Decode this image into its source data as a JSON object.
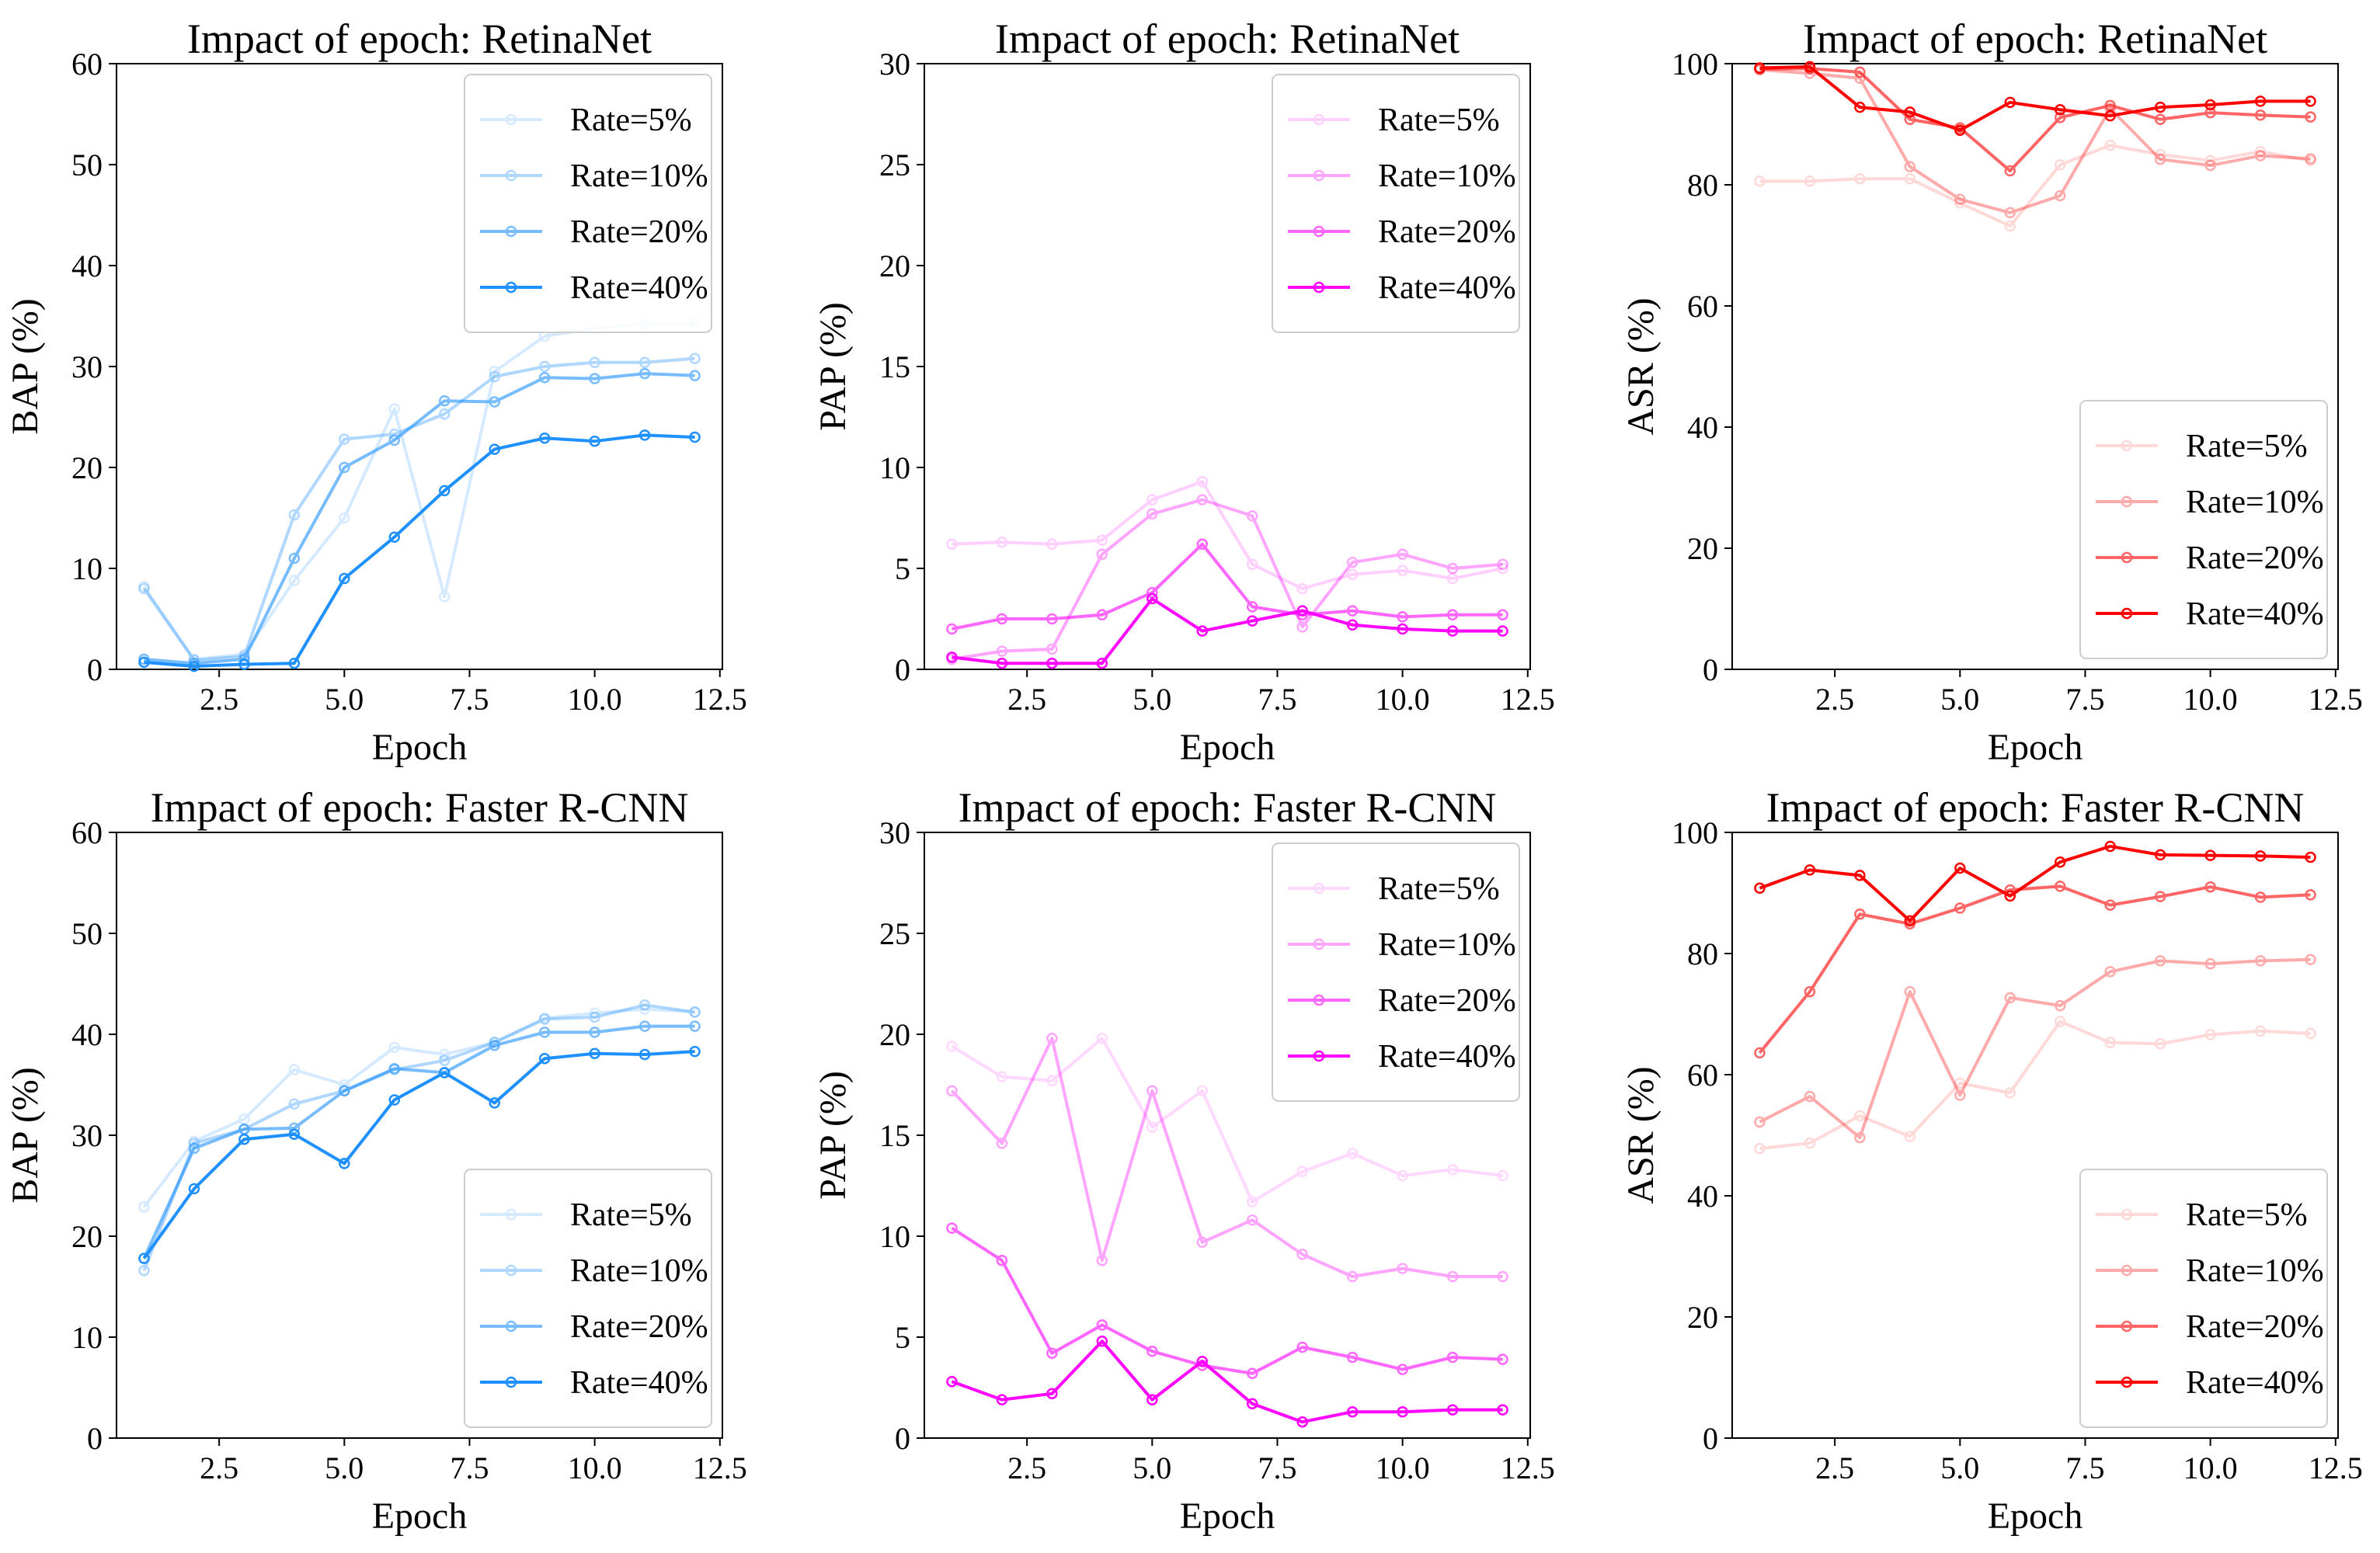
{
  "figure": {
    "layout": "2x3 grid of line charts"
  },
  "chart_data": [
    {
      "type": "line",
      "title": "Impact of epoch: RetinaNet",
      "xlabel": "Epoch",
      "ylabel": "BAP (%)",
      "xlim": [
        0.45,
        12.55
      ],
      "ylim": [
        0,
        60
      ],
      "xticks": [
        2.5,
        5.0,
        7.5,
        10.0,
        12.5
      ],
      "xtick_labels": [
        "2.5",
        "5.0",
        "7.5",
        "10.0",
        "12.5"
      ],
      "yticks": [
        0,
        10,
        20,
        30,
        40,
        50,
        60
      ],
      "ytick_labels": [
        "0",
        "10",
        "20",
        "30",
        "40",
        "50",
        "60"
      ],
      "legend_position": "top-right",
      "x": [
        1,
        2,
        3,
        4,
        5,
        6,
        7,
        8,
        9,
        10,
        11,
        12
      ],
      "series": [
        {
          "name": "Rate=5%",
          "color": "#1E90FF",
          "opacity": 0.18,
          "values": [
            8.2,
            1.0,
            1.5,
            8.8,
            15.0,
            25.8,
            7.2,
            29.5,
            33.0,
            33.8,
            34.2,
            34.3
          ]
        },
        {
          "name": "Rate=10%",
          "color": "#1E90FF",
          "opacity": 0.35,
          "values": [
            8.0,
            0.9,
            1.3,
            15.3,
            22.8,
            23.3,
            25.3,
            29.0,
            30.0,
            30.4,
            30.4,
            30.8
          ]
        },
        {
          "name": "Rate=20%",
          "color": "#1E90FF",
          "opacity": 0.6,
          "values": [
            1.0,
            0.6,
            1.0,
            11.0,
            20.0,
            22.7,
            26.6,
            26.5,
            28.9,
            28.8,
            29.3,
            29.1
          ]
        },
        {
          "name": "Rate=40%",
          "color": "#1E90FF",
          "opacity": 1.0,
          "values": [
            0.7,
            0.3,
            0.5,
            0.6,
            9.0,
            13.1,
            17.7,
            21.8,
            22.9,
            22.6,
            23.2,
            23.0
          ]
        }
      ]
    },
    {
      "type": "line",
      "title": "Impact of epoch: RetinaNet",
      "xlabel": "Epoch",
      "ylabel": "PAP (%)",
      "xlim": [
        0.45,
        12.55
      ],
      "ylim": [
        0,
        30
      ],
      "xticks": [
        2.5,
        5.0,
        7.5,
        10.0,
        12.5
      ],
      "xtick_labels": [
        "2.5",
        "5.0",
        "7.5",
        "10.0",
        "12.5"
      ],
      "yticks": [
        0,
        5,
        10,
        15,
        20,
        25,
        30
      ],
      "ytick_labels": [
        "0",
        "5",
        "10",
        "15",
        "20",
        "25",
        "30"
      ],
      "legend_position": "top-right",
      "x": [
        1,
        2,
        3,
        4,
        5,
        6,
        7,
        8,
        9,
        10,
        11,
        12
      ],
      "series": [
        {
          "name": "Rate=5%",
          "color": "#FF00FF",
          "opacity": 0.18,
          "values": [
            6.2,
            6.3,
            6.2,
            6.4,
            8.4,
            9.3,
            5.2,
            4.0,
            4.7,
            4.9,
            4.5,
            5.0
          ]
        },
        {
          "name": "Rate=10%",
          "color": "#FF00FF",
          "opacity": 0.35,
          "values": [
            0.5,
            0.9,
            1.0,
            5.7,
            7.7,
            8.4,
            7.6,
            2.1,
            5.3,
            5.7,
            5.0,
            5.2
          ]
        },
        {
          "name": "Rate=20%",
          "color": "#FF00FF",
          "opacity": 0.6,
          "values": [
            2.0,
            2.5,
            2.5,
            2.7,
            3.8,
            6.2,
            3.1,
            2.7,
            2.9,
            2.6,
            2.7,
            2.7
          ]
        },
        {
          "name": "Rate=40%",
          "color": "#FF00FF",
          "opacity": 1.0,
          "values": [
            0.6,
            0.3,
            0.3,
            0.3,
            3.5,
            1.9,
            2.4,
            2.9,
            2.2,
            2.0,
            1.9,
            1.9
          ]
        }
      ]
    },
    {
      "type": "line",
      "title": "Impact of epoch: RetinaNet",
      "xlabel": "Epoch",
      "ylabel": "ASR (%)",
      "xlim": [
        0.45,
        12.55
      ],
      "ylim": [
        0,
        100
      ],
      "xticks": [
        2.5,
        5.0,
        7.5,
        10.0,
        12.5
      ],
      "xtick_labels": [
        "2.5",
        "5.0",
        "7.5",
        "10.0",
        "12.5"
      ],
      "yticks": [
        0,
        20,
        40,
        60,
        80,
        100
      ],
      "ytick_labels": [
        "0",
        "20",
        "40",
        "60",
        "80",
        "100"
      ],
      "legend_position": "bottom-right",
      "x": [
        1,
        2,
        3,
        4,
        5,
        6,
        7,
        8,
        9,
        10,
        11,
        12
      ],
      "series": [
        {
          "name": "Rate=5%",
          "color": "#FF0000",
          "opacity": 0.15,
          "values": [
            80.6,
            80.6,
            81.0,
            81.0,
            77.0,
            73.2,
            83.3,
            86.5,
            85.0,
            84.0,
            85.5,
            84.0
          ]
        },
        {
          "name": "Rate=10%",
          "color": "#FF0000",
          "opacity": 0.33,
          "values": [
            99.0,
            98.4,
            97.6,
            83.0,
            77.6,
            75.4,
            78.2,
            92.6,
            84.2,
            83.2,
            84.8,
            84.3
          ]
        },
        {
          "name": "Rate=20%",
          "color": "#FF0000",
          "opacity": 0.6,
          "values": [
            99.1,
            99.2,
            98.6,
            90.8,
            89.4,
            82.3,
            91.1,
            93.1,
            90.8,
            91.9,
            91.5,
            91.2
          ]
        },
        {
          "name": "Rate=40%",
          "color": "#FF0000",
          "opacity": 1.0,
          "values": [
            99.3,
            99.5,
            92.8,
            92.0,
            89.0,
            93.6,
            92.4,
            91.4,
            92.8,
            93.2,
            93.8,
            93.8
          ]
        }
      ]
    },
    {
      "type": "line",
      "title": "Impact of epoch: Faster R-CNN",
      "xlabel": "Epoch",
      "ylabel": "BAP (%)",
      "xlim": [
        0.45,
        12.55
      ],
      "ylim": [
        0,
        60
      ],
      "xticks": [
        2.5,
        5.0,
        7.5,
        10.0,
        12.5
      ],
      "xtick_labels": [
        "2.5",
        "5.0",
        "7.5",
        "10.0",
        "12.5"
      ],
      "yticks": [
        0,
        10,
        20,
        30,
        40,
        50,
        60
      ],
      "ytick_labels": [
        "0",
        "10",
        "20",
        "30",
        "40",
        "50",
        "60"
      ],
      "legend_position": "bottom-right",
      "x": [
        1,
        2,
        3,
        4,
        5,
        6,
        7,
        8,
        9,
        10,
        11,
        12
      ],
      "series": [
        {
          "name": "Rate=5%",
          "color": "#1E90FF",
          "opacity": 0.18,
          "values": [
            22.9,
            29.4,
            31.6,
            36.5,
            35.0,
            38.7,
            38.0,
            39.2,
            41.6,
            42.1,
            42.5,
            42.2
          ]
        },
        {
          "name": "Rate=10%",
          "color": "#1E90FF",
          "opacity": 0.35,
          "values": [
            16.6,
            29.2,
            30.6,
            33.1,
            34.4,
            36.5,
            37.4,
            39.2,
            41.5,
            41.7,
            42.9,
            42.2
          ]
        },
        {
          "name": "Rate=20%",
          "color": "#1E90FF",
          "opacity": 0.6,
          "values": [
            17.8,
            28.7,
            30.6,
            30.7,
            34.4,
            36.6,
            36.2,
            38.9,
            40.2,
            40.2,
            40.8,
            40.8
          ]
        },
        {
          "name": "Rate=40%",
          "color": "#1E90FF",
          "opacity": 1.0,
          "values": [
            17.8,
            24.7,
            29.6,
            30.1,
            27.2,
            33.5,
            36.2,
            33.2,
            37.6,
            38.1,
            38.0,
            38.3
          ]
        }
      ]
    },
    {
      "type": "line",
      "title": "Impact of epoch: Faster R-CNN",
      "xlabel": "Epoch",
      "ylabel": "PAP (%)",
      "xlim": [
        0.45,
        12.55
      ],
      "ylim": [
        0,
        30
      ],
      "xticks": [
        2.5,
        5.0,
        7.5,
        10.0,
        12.5
      ],
      "xtick_labels": [
        "2.5",
        "5.0",
        "7.5",
        "10.0",
        "12.5"
      ],
      "yticks": [
        0,
        5,
        10,
        15,
        20,
        25,
        30
      ],
      "ytick_labels": [
        "0",
        "5",
        "10",
        "15",
        "20",
        "25",
        "30"
      ],
      "legend_position": "top-right",
      "x": [
        1,
        2,
        3,
        4,
        5,
        6,
        7,
        8,
        9,
        10,
        11,
        12
      ],
      "series": [
        {
          "name": "Rate=5%",
          "color": "#FF00FF",
          "opacity": 0.15,
          "values": [
            19.4,
            17.9,
            17.7,
            19.8,
            15.4,
            17.2,
            11.7,
            13.2,
            14.1,
            13.0,
            13.3,
            13.0
          ]
        },
        {
          "name": "Rate=10%",
          "color": "#FF00FF",
          "opacity": 0.35,
          "values": [
            17.2,
            14.6,
            19.8,
            8.8,
            17.2,
            9.7,
            10.8,
            9.1,
            8.0,
            8.4,
            8.0,
            8.0
          ]
        },
        {
          "name": "Rate=20%",
          "color": "#FF00FF",
          "opacity": 0.6,
          "values": [
            10.4,
            8.8,
            4.2,
            5.6,
            4.3,
            3.6,
            3.2,
            4.5,
            4.0,
            3.4,
            4.0,
            3.9
          ]
        },
        {
          "name": "Rate=40%",
          "color": "#FF00FF",
          "opacity": 1.0,
          "values": [
            2.8,
            1.9,
            2.2,
            4.8,
            1.9,
            3.8,
            1.7,
            0.8,
            1.3,
            1.3,
            1.4,
            1.4
          ]
        }
      ]
    },
    {
      "type": "line",
      "title": "Impact of epoch: Faster R-CNN",
      "xlabel": "Epoch",
      "ylabel": "ASR (%)",
      "xlim": [
        0.45,
        12.55
      ],
      "ylim": [
        0,
        100
      ],
      "xticks": [
        2.5,
        5.0,
        7.5,
        10.0,
        12.5
      ],
      "xtick_labels": [
        "2.5",
        "5.0",
        "7.5",
        "10.0",
        "12.5"
      ],
      "yticks": [
        0,
        20,
        40,
        60,
        80,
        100
      ],
      "ytick_labels": [
        "0",
        "20",
        "40",
        "60",
        "80",
        "100"
      ],
      "legend_position": "bottom-right",
      "x": [
        1,
        2,
        3,
        4,
        5,
        6,
        7,
        8,
        9,
        10,
        11,
        12
      ],
      "series": [
        {
          "name": "Rate=5%",
          "color": "#FF0000",
          "opacity": 0.15,
          "values": [
            47.8,
            48.7,
            53.2,
            49.8,
            58.6,
            57.0,
            68.8,
            65.3,
            65.1,
            66.6,
            67.2,
            66.8
          ]
        },
        {
          "name": "Rate=10%",
          "color": "#FF0000",
          "opacity": 0.33,
          "values": [
            52.2,
            56.4,
            49.6,
            73.7,
            56.6,
            72.7,
            71.4,
            77.0,
            78.8,
            78.3,
            78.8,
            79.0
          ]
        },
        {
          "name": "Rate=20%",
          "color": "#FF0000",
          "opacity": 0.6,
          "values": [
            63.6,
            73.7,
            86.5,
            84.9,
            87.5,
            90.5,
            91.1,
            88.0,
            89.4,
            91.0,
            89.3,
            89.7
          ]
        },
        {
          "name": "Rate=40%",
          "color": "#FF0000",
          "opacity": 1.0,
          "values": [
            90.8,
            93.8,
            92.9,
            85.4,
            94.1,
            89.5,
            95.1,
            97.7,
            96.3,
            96.2,
            96.1,
            95.9
          ]
        }
      ]
    }
  ]
}
